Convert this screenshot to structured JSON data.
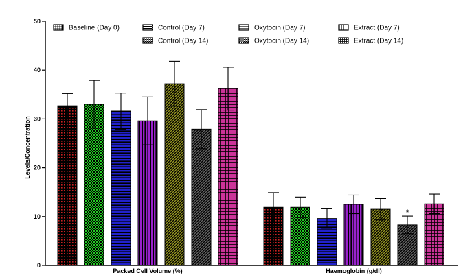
{
  "chart_data": {
    "type": "bar",
    "ylabel": "Levels/Concentration",
    "xlabel": "",
    "title": "",
    "ylim": [
      0,
      50
    ],
    "yticks": [
      0,
      10,
      20,
      30,
      40,
      50
    ],
    "categories": [
      "Packed Cell Volume (%)",
      "Haemoglobin (g/dl)"
    ],
    "legend_position": "top",
    "series": [
      {
        "name": "Baseline (Day 0)",
        "values": [
          32.7,
          11.9
        ],
        "errors": [
          2.5,
          3.0
        ],
        "color": "#cc2222",
        "pattern": "dots",
        "annotation": [
          "",
          ""
        ]
      },
      {
        "name": "Control (Day 7)",
        "values": [
          33.0,
          11.9
        ],
        "errors": [
          4.9,
          2.1
        ],
        "color": "#22cc22",
        "pattern": "checker",
        "annotation": [
          "",
          ""
        ]
      },
      {
        "name": "Oxytocin (Day 7)",
        "values": [
          31.6,
          9.6
        ],
        "errors": [
          3.7,
          2.0
        ],
        "color": "#2222cc",
        "pattern": "hlines",
        "annotation": [
          "",
          ""
        ]
      },
      {
        "name": "Extract (Day 7)",
        "values": [
          29.6,
          12.5
        ],
        "errors": [
          4.9,
          1.9
        ],
        "color": "#9922cc",
        "pattern": "vlines",
        "annotation": [
          "",
          ""
        ]
      },
      {
        "name": "Control (Day 14)",
        "values": [
          37.2,
          11.5
        ],
        "errors": [
          4.6,
          2.2
        ],
        "color": "#999922",
        "pattern": "diag",
        "annotation": [
          "",
          ""
        ]
      },
      {
        "name": "Oxytocin (Day 14)",
        "values": [
          27.9,
          8.3
        ],
        "errors": [
          4.0,
          1.8
        ],
        "color": "#666666",
        "pattern": "diag",
        "annotation": [
          "",
          "*"
        ]
      },
      {
        "name": "Extract (Day 14)",
        "values": [
          36.2,
          12.6
        ],
        "errors": [
          4.4,
          2.0
        ],
        "color": "#cc3399",
        "pattern": "grid",
        "annotation": [
          "",
          ""
        ]
      }
    ]
  }
}
